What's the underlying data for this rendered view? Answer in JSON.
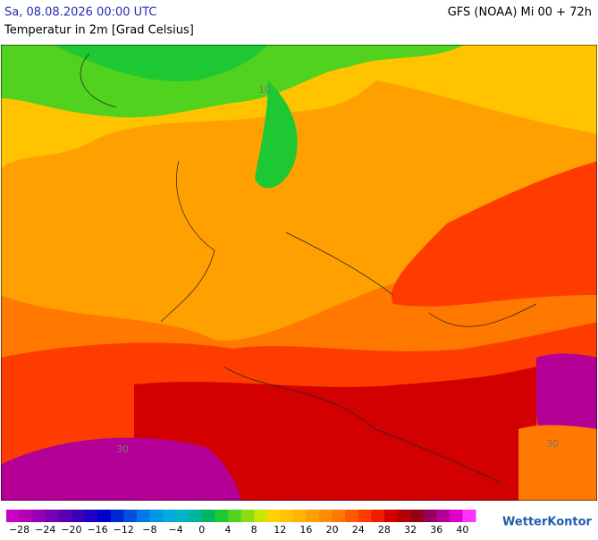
{
  "header": {
    "datetime": "Sa, 08.08.2026 00:00 UTC",
    "model": "GFS (NOAA) Mi 00 + 72h",
    "subtitle": "Temperatur in 2m [Grad Celsius]"
  },
  "map": {
    "contour_labels": [
      "10",
      "30",
      "30"
    ]
  },
  "legend": {
    "range": [
      -30,
      42
    ],
    "colors": [
      "#c800c8",
      "#b400b4",
      "#9600b4",
      "#7800b4",
      "#5a00b4",
      "#3c00b4",
      "#1e00c8",
      "#0000c8",
      "#0028d2",
      "#0050dc",
      "#0078e6",
      "#0096e6",
      "#00aadc",
      "#00b4c8",
      "#00b49b",
      "#00b464",
      "#1ec832",
      "#50d21e",
      "#8cdc14",
      "#c8e600",
      "#ffd200",
      "#ffc300",
      "#ffb400",
      "#ffa000",
      "#ff8c00",
      "#ff7800",
      "#ff5a00",
      "#ff3c00",
      "#f01e00",
      "#d20000",
      "#b40000",
      "#960014",
      "#96005a",
      "#b40096",
      "#dc00c8",
      "#ff32ff"
    ],
    "ticks": [
      {
        "value": -28,
        "label": "−28"
      },
      {
        "value": -24,
        "label": "−24"
      },
      {
        "value": -20,
        "label": "−20"
      },
      {
        "value": -16,
        "label": "−16"
      },
      {
        "value": -12,
        "label": "−12"
      },
      {
        "value": -8,
        "label": "−8"
      },
      {
        "value": -4,
        "label": "−4"
      },
      0,
      4,
      8,
      12,
      16,
      20,
      24,
      28,
      32,
      36,
      40
    ]
  },
  "logo": "WetterKontor"
}
